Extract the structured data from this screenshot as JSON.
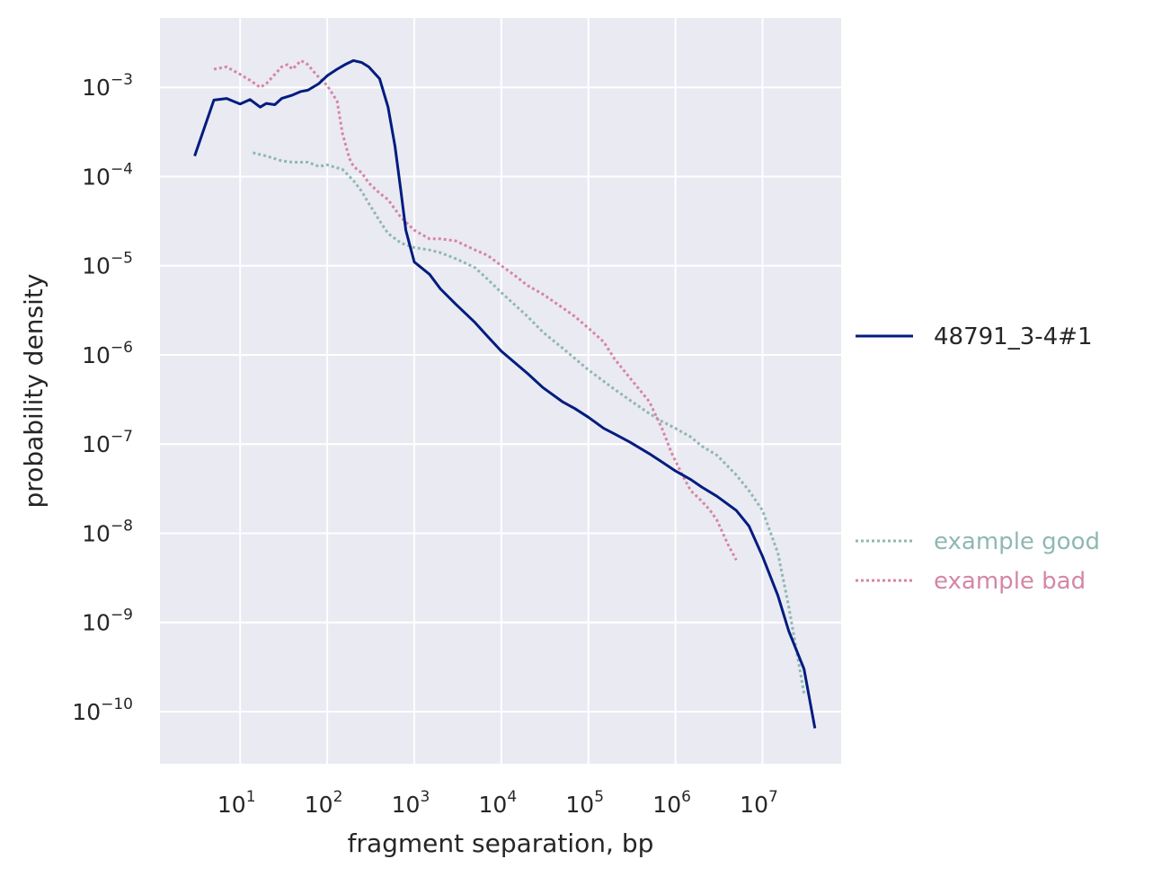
{
  "chart_data": {
    "type": "line",
    "title": "",
    "xlabel": "fragment separation, bp",
    "ylabel": "probability density",
    "xscale": "log",
    "yscale": "log",
    "xlim": [
      1.2,
      80000000
    ],
    "ylim": [
      2.6e-11,
      0.006
    ],
    "grid": true,
    "background": "#eaeaf2",
    "x_ticks": [
      {
        "base": "10",
        "exp": "1",
        "value": 10
      },
      {
        "base": "10",
        "exp": "2",
        "value": 100
      },
      {
        "base": "10",
        "exp": "3",
        "value": 1000
      },
      {
        "base": "10",
        "exp": "4",
        "value": 10000
      },
      {
        "base": "10",
        "exp": "5",
        "value": 100000
      },
      {
        "base": "10",
        "exp": "6",
        "value": 1000000
      },
      {
        "base": "10",
        "exp": "7",
        "value": 10000000
      }
    ],
    "y_ticks": [
      {
        "base": "10",
        "exp": "−3",
        "value": 0.001
      },
      {
        "base": "10",
        "exp": "−4",
        "value": 0.0001
      },
      {
        "base": "10",
        "exp": "−5",
        "value": 1e-05
      },
      {
        "base": "10",
        "exp": "−6",
        "value": 1e-06
      },
      {
        "base": "10",
        "exp": "−7",
        "value": 1e-07
      },
      {
        "base": "10",
        "exp": "−8",
        "value": 1e-08
      },
      {
        "base": "10",
        "exp": "−9",
        "value": 1e-09
      },
      {
        "base": "10",
        "exp": "−10",
        "value": 1e-10
      }
    ],
    "legend_placement": "right",
    "series": [
      {
        "name": "48791_3-4#1",
        "color": "#001c7f",
        "style": "solid",
        "x": [
          3,
          5,
          7,
          10,
          13,
          17,
          20,
          25,
          30,
          40,
          50,
          60,
          80,
          100,
          130,
          160,
          200,
          250,
          300,
          400,
          500,
          600,
          700,
          800,
          1000,
          1500,
          2000,
          3000,
          5000,
          7000,
          10000,
          20000,
          30000,
          50000,
          70000,
          100000,
          150000,
          200000,
          300000,
          500000,
          700000,
          1000000,
          1500000,
          2000000,
          3000000,
          5000000,
          7000000,
          10000000,
          15000000,
          20000000,
          30000000,
          40000000
        ],
        "y": [
          0.00017,
          0.00072,
          0.00075,
          0.00065,
          0.00073,
          0.0006,
          0.00066,
          0.00064,
          0.00075,
          0.00082,
          0.0009,
          0.00093,
          0.0011,
          0.00135,
          0.0016,
          0.0018,
          0.002,
          0.0019,
          0.0017,
          0.00125,
          0.0006,
          0.00022,
          7e-05,
          2.5e-05,
          1.1e-05,
          8e-06,
          5.5e-06,
          3.7e-06,
          2.3e-06,
          1.6e-06,
          1.1e-06,
          6.2e-07,
          4.3e-07,
          3e-07,
          2.5e-07,
          2e-07,
          1.5e-07,
          1.3e-07,
          1.05e-07,
          7.8e-08,
          6.3e-08,
          5e-08,
          4e-08,
          3.3e-08,
          2.6e-08,
          1.8e-08,
          1.2e-08,
          5.5e-09,
          2e-09,
          8e-10,
          3e-10,
          6.5e-11
        ]
      },
      {
        "name": "example good",
        "color": "#8fb8b2",
        "style": "dotted",
        "x": [
          14,
          20,
          30,
          40,
          60,
          80,
          100,
          150,
          200,
          250,
          300,
          400,
          500,
          700,
          1000,
          1500,
          2000,
          3000,
          5000,
          7000,
          10000,
          20000,
          30000,
          50000,
          100000,
          200000,
          300000,
          500000,
          700000,
          1000000,
          1500000,
          2000000,
          3000000,
          5000000,
          7000000,
          10000000,
          15000000,
          20000000,
          30000000
        ],
        "y": [
          0.000185,
          0.00017,
          0.00015,
          0.000145,
          0.000145,
          0.00013,
          0.000135,
          0.00012,
          9e-05,
          6.8e-05,
          5e-05,
          3.2e-05,
          2.3e-05,
          1.8e-05,
          1.6e-05,
          1.5e-05,
          1.4e-05,
          1.2e-05,
          9.5e-06,
          7e-06,
          5e-06,
          2.7e-06,
          1.8e-06,
          1.2e-06,
          6.8e-07,
          4.1e-07,
          3.1e-07,
          2.2e-07,
          1.8e-07,
          1.5e-07,
          1.2e-07,
          9.5e-08,
          7.5e-08,
          4.5e-08,
          3e-08,
          1.8e-08,
          6e-09,
          1.5e-09,
          1.6e-10
        ]
      },
      {
        "name": "example bad",
        "color": "#d487a5",
        "style": "dotted",
        "x": [
          5,
          7,
          10,
          13,
          17,
          20,
          25,
          30,
          35,
          40,
          50,
          60,
          70,
          80,
          100,
          130,
          150,
          180,
          200,
          250,
          300,
          400,
          500,
          700,
          1000,
          1500,
          2000,
          3000,
          5000,
          7000,
          10000,
          15000,
          20000,
          30000,
          50000,
          70000,
          100000,
          150000,
          200000,
          300000,
          500000,
          700000,
          900000,
          1200000,
          1500000,
          2000000,
          2500000,
          3000000,
          4000000,
          5000000
        ],
        "y": [
          0.0016,
          0.0017,
          0.0014,
          0.0012,
          0.001,
          0.0011,
          0.0014,
          0.0017,
          0.0018,
          0.0016,
          0.002,
          0.0018,
          0.0015,
          0.0013,
          0.00105,
          0.0007,
          0.0003,
          0.00016,
          0.00013,
          0.00011,
          8.5e-05,
          6.5e-05,
          5.5e-05,
          3.5e-05,
          2.5e-05,
          2e-05,
          2e-05,
          1.9e-05,
          1.5e-05,
          1.3e-05,
          1e-05,
          7.5e-06,
          6e-06,
          4.8e-06,
          3.4e-06,
          2.7e-06,
          2e-06,
          1.4e-06,
          9e-07,
          5.5e-07,
          3e-07,
          1.5e-07,
          8e-08,
          4.5e-08,
          3e-08,
          2.3e-08,
          1.8e-08,
          1.4e-08,
          7.5e-09,
          5e-09
        ]
      }
    ]
  }
}
